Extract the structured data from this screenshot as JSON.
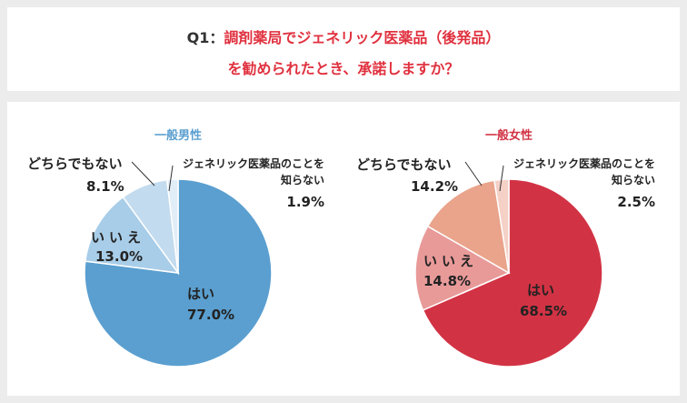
{
  "question": {
    "number": "Q1",
    "separator": "：",
    "lines": [
      "調剤薬局でジェネリック医薬品（後発品）",
      "を勧められたとき、承諾しますか？"
    ]
  },
  "chart_data": [
    {
      "type": "pie",
      "title": "一般男性",
      "title_color": "#5a9fd0",
      "categories": [
        "はい",
        "いいえ",
        "どちらでもない",
        "ジェネリック医薬品のことを知らない"
      ],
      "values": [
        77.0,
        13.0,
        8.1,
        1.9
      ],
      "value_labels": [
        "77.0%",
        "13.0%",
        "8.1%",
        "1.9%"
      ],
      "colors": [
        "#5a9fd0",
        "#a8cde8",
        "#c3dbee",
        "#e1edf7"
      ]
    },
    {
      "type": "pie",
      "title": "一般女性",
      "title_color": "#d23344",
      "categories": [
        "はい",
        "いいえ",
        "どちらでもない",
        "ジェネリック医薬品のことを知らない"
      ],
      "values": [
        68.5,
        14.8,
        14.2,
        2.5
      ],
      "value_labels": [
        "68.5%",
        "14.8%",
        "14.2%",
        "2.5%"
      ],
      "colors": [
        "#d23344",
        "#e89a99",
        "#e9a48b",
        "#f4d0c6"
      ]
    }
  ]
}
